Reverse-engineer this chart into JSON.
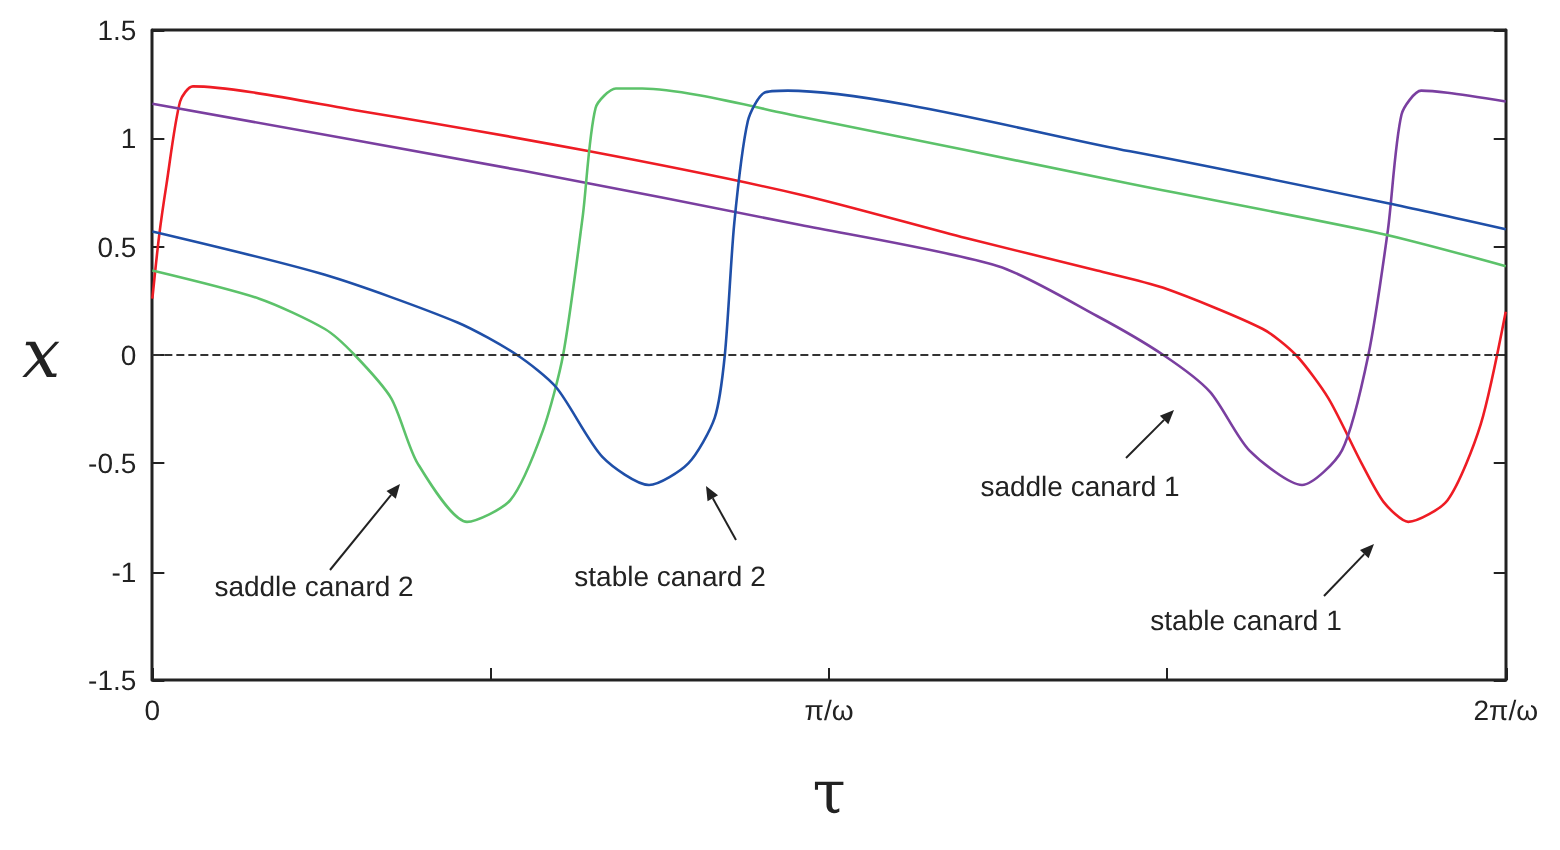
{
  "chart_data": {
    "type": "line",
    "xlabel": "τ",
    "ylabel": "x",
    "xlim": [
      0,
      2
    ],
    "ylim": [
      -1.5,
      1.5
    ],
    "xticks": [
      0,
      {
        "value": 0.5,
        "label": null
      },
      {
        "value": 1,
        "label": "π/ω"
      },
      {
        "value": 1.5,
        "label": null
      },
      {
        "value": 2,
        "label": "2π/ω"
      }
    ],
    "yticks": [
      -1.5,
      -1,
      -0.5,
      0,
      0.5,
      1,
      1.5
    ],
    "grid": false,
    "marker": "none",
    "line_style": "solid",
    "ref_lines": [
      {
        "axis": "y",
        "value": 0,
        "label": null,
        "color": "#333333",
        "line_style": "dashed"
      }
    ],
    "series": [
      {
        "color": "#ee1c24",
        "x": [
          0,
          0.01,
          0.021,
          0.041,
          0.06,
          0.3,
          0.646,
          0.958,
          1.202,
          1.396,
          1.494,
          1.641,
          1.69,
          1.738,
          1.787,
          1.82,
          1.856,
          1.914,
          1.963,
          2
        ],
        "values": [
          0.26,
          0.55,
          0.79,
          1.17,
          1.24,
          1.13,
          0.94,
          0.74,
          0.54,
          0.39,
          0.31,
          0.12,
          0,
          -0.2,
          -0.5,
          -0.68,
          -0.77,
          -0.67,
          -0.32,
          0.2
        ]
      },
      {
        "color": "#7a3fa0",
        "x": [
          0,
          0.548,
          0.958,
          1.25,
          1.396,
          1.494,
          1.563,
          1.621,
          1.699,
          1.758,
          1.797,
          1.826,
          1.846,
          1.875,
          1.914,
          2
        ],
        "values": [
          1.16,
          0.85,
          0.6,
          0.41,
          0.18,
          0,
          -0.17,
          -0.44,
          -0.6,
          -0.44,
          0,
          0.58,
          1.11,
          1.22,
          1.21,
          1.17
        ]
      },
      {
        "color": "#5cc26a",
        "x": [
          0,
          0.158,
          0.255,
          0.299,
          0.353,
          0.392,
          0.465,
          0.529,
          0.577,
          0.607,
          0.636,
          0.655,
          0.685,
          0.724,
          0.958,
          1.445,
          1.816,
          2
        ],
        "values": [
          0.39,
          0.26,
          0.12,
          0,
          -0.2,
          -0.5,
          -0.77,
          -0.67,
          -0.35,
          0,
          0.64,
          1.14,
          1.23,
          1.23,
          1.1,
          0.79,
          0.56,
          0.41
        ]
      },
      {
        "color": "#1f4fa8",
        "x": [
          0,
          0.255,
          0.451,
          0.539,
          0.597,
          0.665,
          0.734,
          0.792,
          0.831,
          0.846,
          0.86,
          0.88,
          0.904,
          0.939,
          1.445,
          1.826,
          2
        ],
        "values": [
          0.57,
          0.37,
          0.15,
          0,
          -0.15,
          -0.47,
          -0.6,
          -0.5,
          -0.29,
          0,
          0.61,
          1.08,
          1.21,
          1.22,
          0.94,
          0.7,
          0.58
        ]
      }
    ],
    "annotations": [
      "saddle canard 2",
      "stable canard 2",
      "saddle canard 1",
      "stable canard 1"
    ]
  }
}
